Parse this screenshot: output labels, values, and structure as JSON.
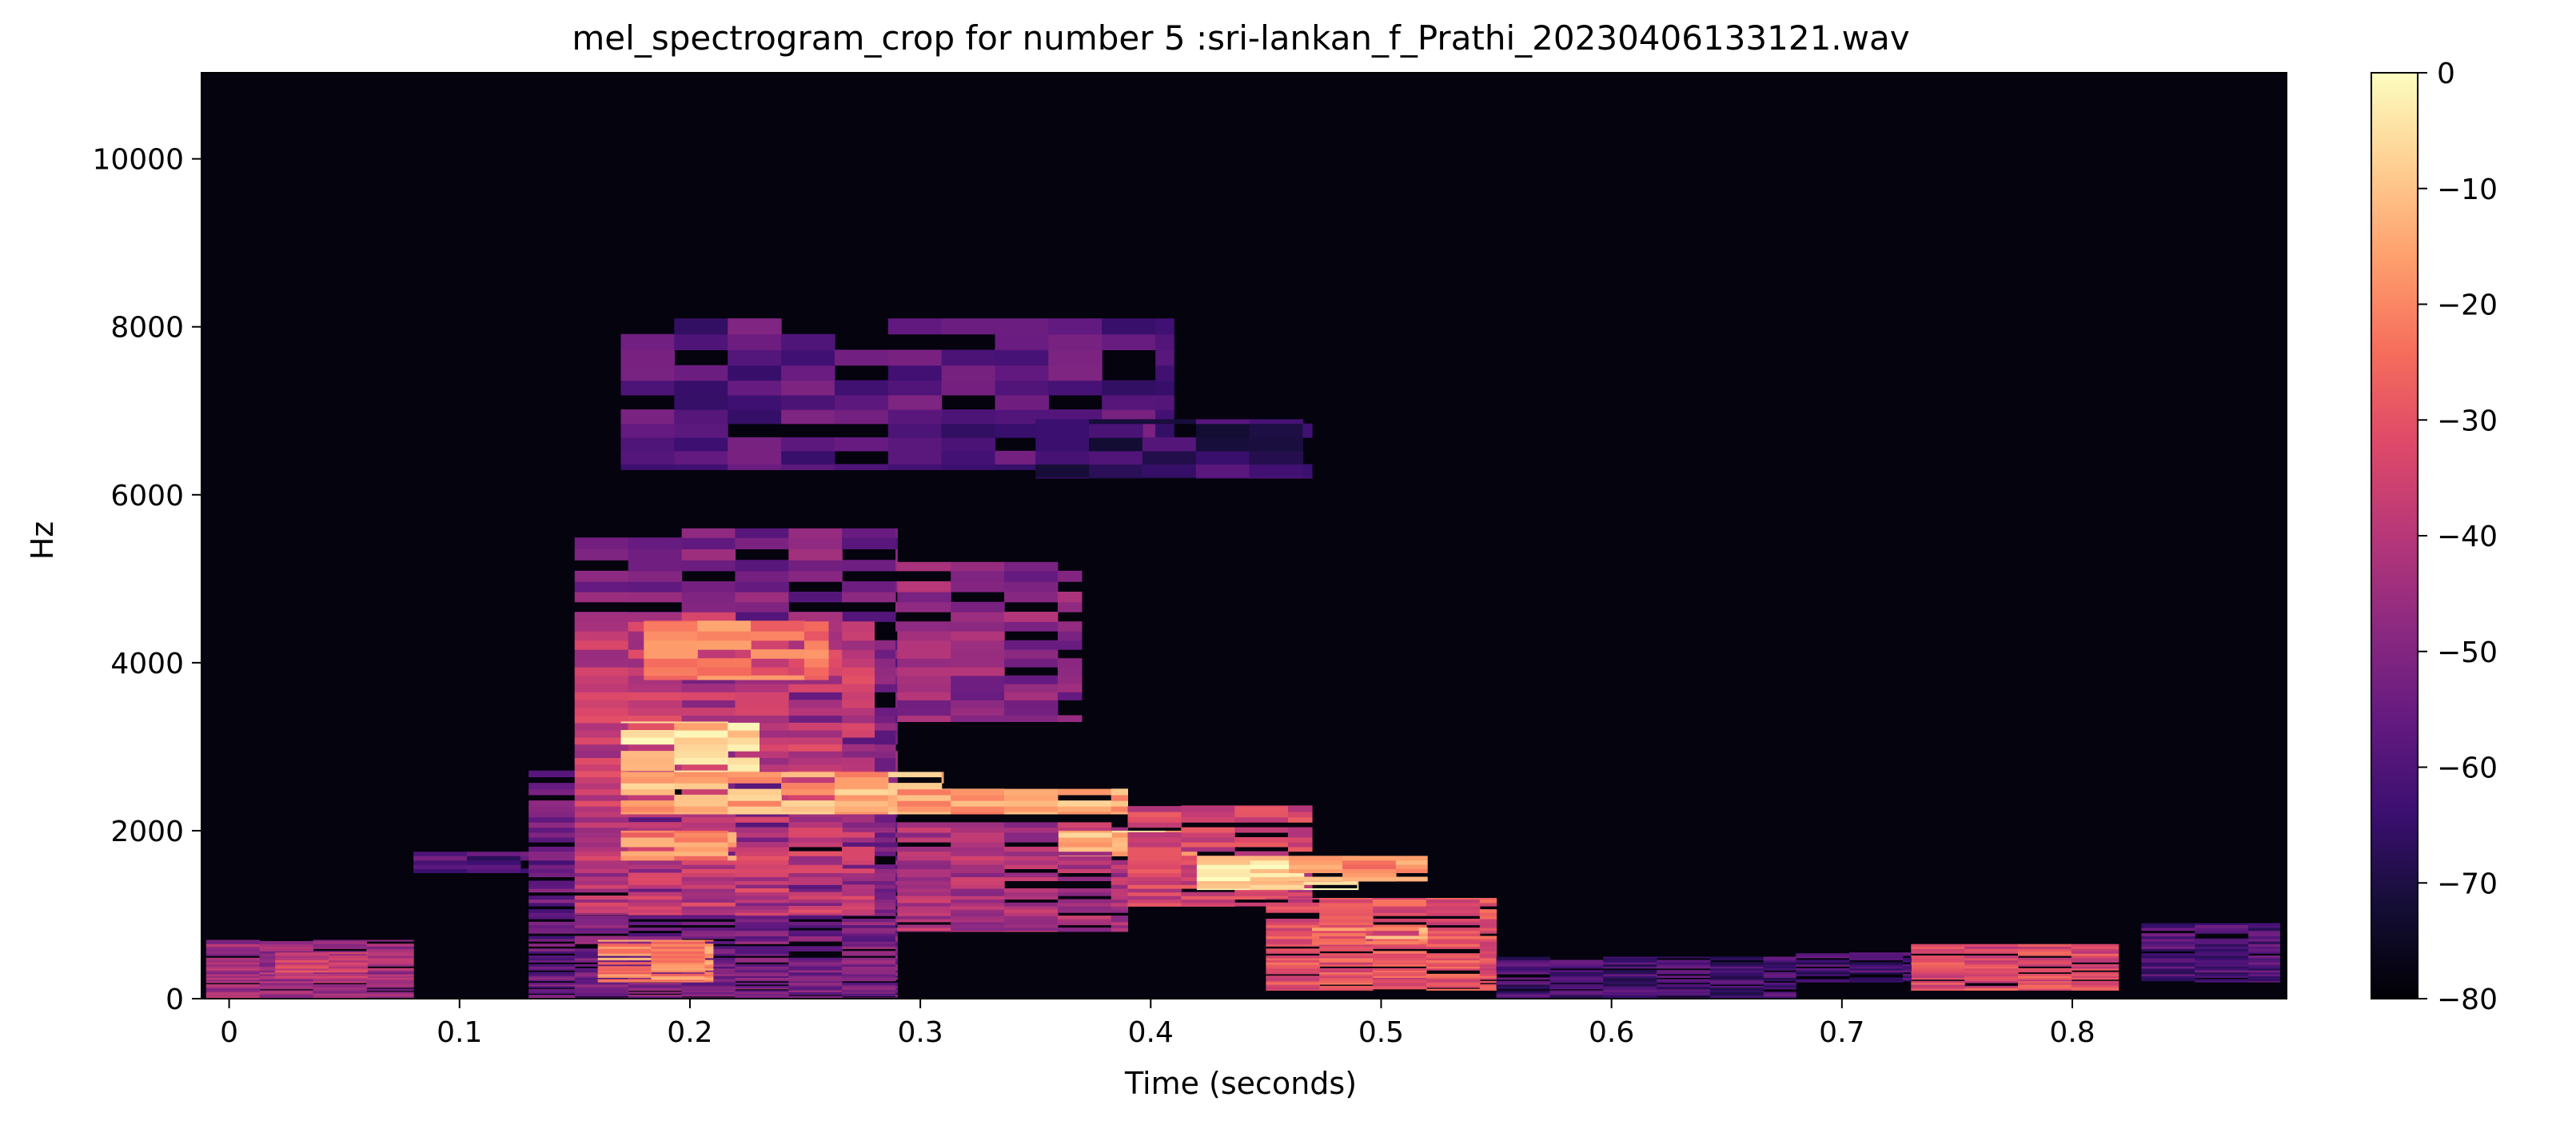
{
  "chart_data": {
    "type": "heatmap",
    "title": "mel_spectrogram_crop for number 5 :sri-lankan_f_Prathi_20230406133121.wav",
    "xlabel": "Time (seconds)",
    "ylabel": "Hz",
    "xlim": [
      -0.012,
      0.893
    ],
    "ylim": [
      0,
      11025
    ],
    "x_ticks": [
      0,
      0.1,
      0.2,
      0.3,
      0.4,
      0.5,
      0.6,
      0.7,
      0.8
    ],
    "x_tick_labels": [
      "0",
      "0.1",
      "0.2",
      "0.3",
      "0.4",
      "0.5",
      "0.6",
      "0.7",
      "0.8"
    ],
    "y_ticks": [
      0,
      2000,
      4000,
      6000,
      8000,
      10000
    ],
    "y_tick_labels": [
      "0",
      "2000",
      "4000",
      "6000",
      "8000",
      "10000"
    ],
    "colorbar": {
      "range": [
        -80,
        0
      ],
      "ticks": [
        0,
        -10,
        -20,
        -30,
        -40,
        -50,
        -60,
        -70,
        -80
      ],
      "tick_labels": [
        "0",
        "−10",
        "−20",
        "−30",
        "−40",
        "−50",
        "−60",
        "−70",
        "−80"
      ],
      "colormap": "magma"
    },
    "blobs": [
      {
        "t0": -0.01,
        "t1": 0.08,
        "f0": 0,
        "f1": 700,
        "db": -45
      },
      {
        "t0": 0.02,
        "t1": 0.06,
        "f0": 250,
        "f1": 550,
        "db": -35
      },
      {
        "t0": 0.08,
        "t1": 0.13,
        "f0": 1500,
        "f1": 1750,
        "db": -60
      },
      {
        "t0": 0.13,
        "t1": 0.15,
        "f0": 0,
        "f1": 2800,
        "db": -55
      },
      {
        "t0": 0.15,
        "t1": 0.29,
        "f0": 0,
        "f1": 5600,
        "db": -52
      },
      {
        "t0": 0.15,
        "t1": 0.28,
        "f0": 1000,
        "f1": 4600,
        "db": -38
      },
      {
        "t0": 0.16,
        "t1": 0.21,
        "f0": 200,
        "f1": 700,
        "db": -20
      },
      {
        "t0": 0.18,
        "t1": 0.26,
        "f0": 3800,
        "f1": 4500,
        "db": -22
      },
      {
        "t0": 0.17,
        "t1": 0.23,
        "f0": 2700,
        "f1": 3300,
        "db": -8
      },
      {
        "t0": 0.17,
        "t1": 0.31,
        "f0": 2200,
        "f1": 2700,
        "db": -14
      },
      {
        "t0": 0.29,
        "t1": 0.39,
        "f0": 2200,
        "f1": 2500,
        "db": -15
      },
      {
        "t0": 0.17,
        "t1": 0.22,
        "f0": 1600,
        "f1": 2000,
        "db": -20
      },
      {
        "t0": 0.29,
        "t1": 0.37,
        "f0": 3300,
        "f1": 5200,
        "db": -48
      },
      {
        "t0": 0.29,
        "t1": 0.39,
        "f0": 800,
        "f1": 2100,
        "db": -42
      },
      {
        "t0": 0.36,
        "t1": 0.42,
        "f0": 1700,
        "f1": 2000,
        "db": -12
      },
      {
        "t0": 0.39,
        "t1": 0.47,
        "f0": 1100,
        "f1": 2300,
        "db": -35
      },
      {
        "t0": 0.42,
        "t1": 0.49,
        "f0": 1300,
        "f1": 1700,
        "db": -6
      },
      {
        "t0": 0.46,
        "t1": 0.52,
        "f0": 1400,
        "f1": 1700,
        "db": -18
      },
      {
        "t0": 0.45,
        "t1": 0.55,
        "f0": 100,
        "f1": 1200,
        "db": -30
      },
      {
        "t0": 0.47,
        "t1": 0.52,
        "f0": 650,
        "f1": 850,
        "db": -18
      },
      {
        "t0": 0.55,
        "t1": 0.68,
        "f0": 0,
        "f1": 500,
        "db": -62
      },
      {
        "t0": 0.17,
        "t1": 0.41,
        "f0": 6300,
        "f1": 8100,
        "db": -58
      },
      {
        "t0": 0.35,
        "t1": 0.47,
        "f0": 6200,
        "f1": 6900,
        "db": -65
      },
      {
        "t0": 0.73,
        "t1": 0.82,
        "f0": 100,
        "f1": 650,
        "db": -32
      },
      {
        "t0": 0.68,
        "t1": 0.73,
        "f0": 200,
        "f1": 550,
        "db": -62
      },
      {
        "t0": 0.83,
        "t1": 0.89,
        "f0": 200,
        "f1": 900,
        "db": -60
      }
    ]
  }
}
